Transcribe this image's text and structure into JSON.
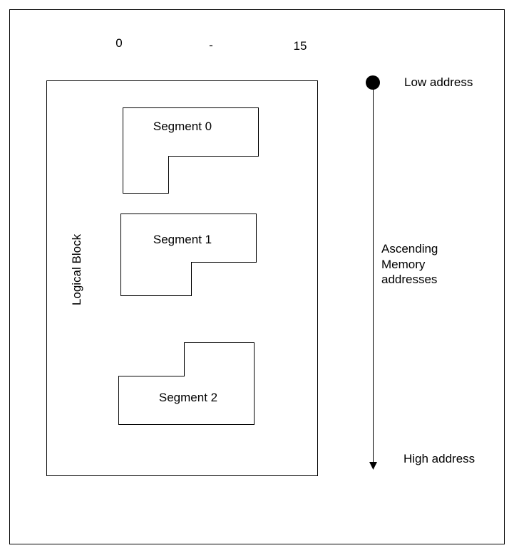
{
  "header": {
    "range_start": "0",
    "range_separator": "-",
    "range_end": "15"
  },
  "block": {
    "label": "Logical Block",
    "segments": [
      {
        "label": "Segment 0"
      },
      {
        "label": "Segment 1"
      },
      {
        "label": "Segment 2"
      }
    ]
  },
  "address_axis": {
    "low_label": "Low address",
    "high_label": "High address",
    "direction_label_lines": [
      "Ascending",
      "Memory",
      "addresses"
    ]
  }
}
